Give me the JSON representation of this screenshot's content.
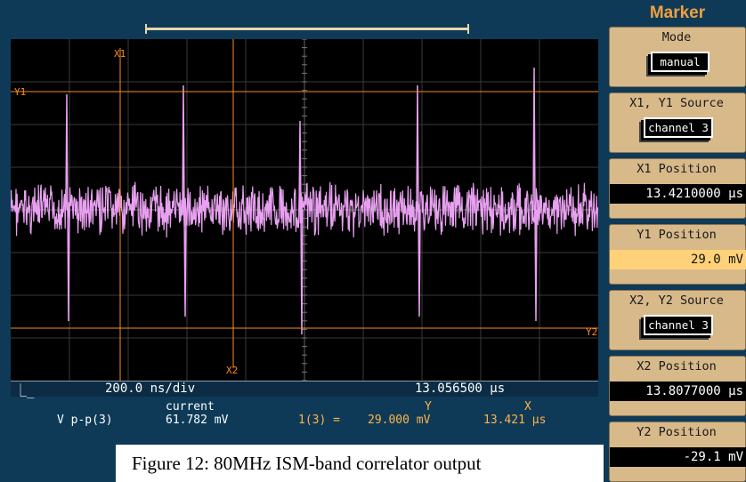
{
  "status_bar": {
    "timebase": "200.0 ns/div",
    "position": "13.056500 µs"
  },
  "measurements": {
    "header_current": "current",
    "header_y": "Y",
    "header_x": "X",
    "label": "V p-p(3)",
    "current_value": "61.782 mV",
    "marker_ref": "1(3) =",
    "y_value": "29.000 mV",
    "x_value": "13.421 µs"
  },
  "caption": "Figure 12: 80MHz ISM-band correlator output",
  "markers": {
    "x1_label": "X1",
    "x2_label": "X2",
    "y1_label": "Y1",
    "y2_label": "Y2",
    "trace_color": "#e8a0f0",
    "marker_color": "#ff8c1a"
  },
  "panel": {
    "title": "Marker",
    "mode_label": "Mode",
    "mode_value": "manual",
    "x1y1_source_label": "X1, Y1 Source",
    "x1y1_source_value": "channel 3",
    "x1_position_label": "X1 Position",
    "x1_position_value": "13.4210000 µs",
    "y1_position_label": "Y1 Position",
    "y1_position_value": "29.0 mV",
    "x2y2_source_label": "X2, Y2 Source",
    "x2y2_source_value": "channel 3",
    "x2_position_label": "X2 Position",
    "x2_position_value": "13.8077000 µs",
    "y2_position_label": "Y2 Position",
    "y2_position_value": "-29.1 mV"
  }
}
